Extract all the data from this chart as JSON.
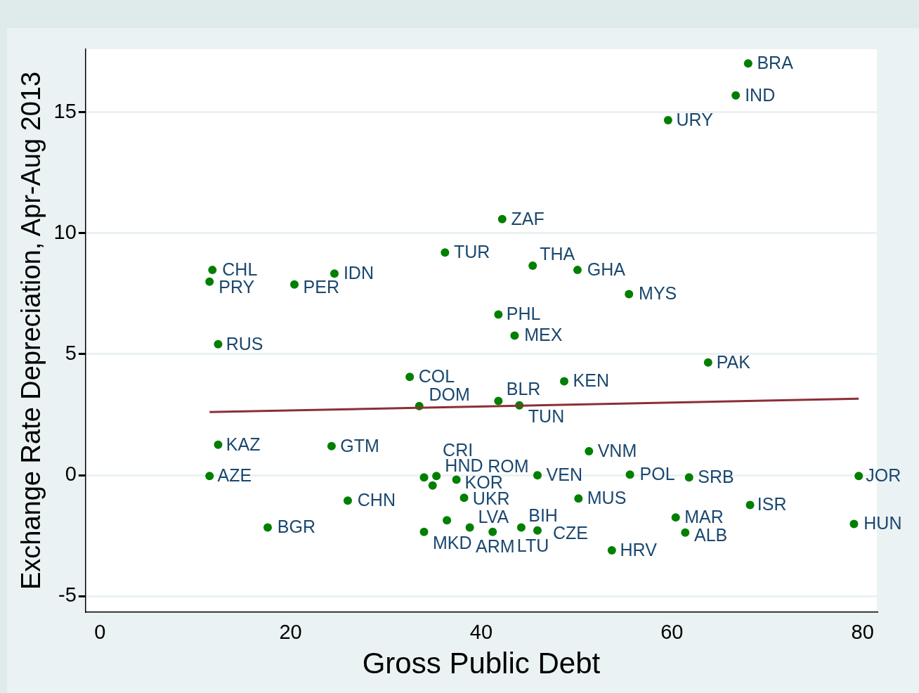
{
  "chart_data": {
    "type": "scatter",
    "xlabel": "Gross Public Debt",
    "ylabel": "Exchange Rate Depreciation, Apr-Aug 2013",
    "xlim": [
      -1.5,
      81.5
    ],
    "ylim": [
      -5.65,
      17.6
    ],
    "xticks": [
      0,
      20,
      40,
      60,
      80
    ],
    "yticks": [
      -5,
      0,
      5,
      10,
      15
    ],
    "grid": "y",
    "legend": false,
    "marker": "circle",
    "series": [
      {
        "type": "scatter",
        "color": "#007f00",
        "x": [
          68.0,
          66.7,
          59.6,
          42.2,
          36.2,
          45.4,
          50.1,
          11.8,
          11.5,
          24.6,
          20.4,
          55.5,
          41.8,
          43.5,
          12.4,
          63.8,
          32.5,
          48.7,
          41.8,
          44.0,
          33.5,
          12.4,
          24.3,
          51.3,
          11.5,
          34.0,
          35.3,
          34.9,
          37.4,
          45.9,
          55.6,
          61.8,
          79.6,
          26.0,
          38.2,
          50.2,
          68.2,
          36.4,
          60.4,
          79.1,
          17.6,
          38.8,
          44.2,
          34.0,
          41.2,
          45.9,
          61.4,
          53.7
        ],
        "values": [
          17.01,
          15.69,
          14.67,
          10.58,
          9.2,
          8.66,
          8.48,
          8.48,
          8.0,
          8.33,
          7.88,
          7.48,
          6.64,
          5.77,
          5.41,
          4.66,
          4.06,
          3.88,
          3.07,
          2.89,
          2.86,
          1.26,
          1.2,
          0.99,
          -0.03,
          -0.09,
          -0.03,
          -0.42,
          -0.18,
          0.0,
          0.03,
          -0.09,
          -0.03,
          -1.05,
          -0.93,
          -0.96,
          -1.23,
          -1.86,
          -1.74,
          -2.01,
          -2.16,
          -2.16,
          -2.16,
          -2.34,
          -2.34,
          -2.28,
          -2.37,
          -3.1
        ]
      },
      {
        "type": "line",
        "color": "#8b2f36",
        "marker": "none",
        "x": [
          11.5,
          79.6
        ],
        "values": [
          2.61,
          3.16
        ]
      }
    ],
    "annotations": [
      {
        "text": "BRA",
        "x": 68.0,
        "y": 17.01
      },
      {
        "text": "IND",
        "x": 66.7,
        "y": 15.69
      },
      {
        "text": "URY",
        "x": 59.6,
        "y": 14.67
      },
      {
        "text": "ZAF",
        "x": 42.2,
        "y": 10.58
      },
      {
        "text": "TUR",
        "x": 36.2,
        "y": 9.2
      },
      {
        "text": "THA",
        "x": 45.4,
        "y": 8.66
      },
      {
        "text": "GHA",
        "x": 50.1,
        "y": 8.48
      },
      {
        "text": "CHL",
        "x": 11.8,
        "y": 8.48
      },
      {
        "text": "PRY",
        "x": 11.5,
        "y": 8.0
      },
      {
        "text": "IDN",
        "x": 24.6,
        "y": 8.33
      },
      {
        "text": "PER",
        "x": 20.4,
        "y": 7.88
      },
      {
        "text": "MYS",
        "x": 55.5,
        "y": 7.48
      },
      {
        "text": "PHL",
        "x": 41.8,
        "y": 6.64
      },
      {
        "text": "MEX",
        "x": 43.5,
        "y": 5.77
      },
      {
        "text": "RUS",
        "x": 12.4,
        "y": 5.41
      },
      {
        "text": "PAK",
        "x": 63.8,
        "y": 4.66
      },
      {
        "text": "COL",
        "x": 32.5,
        "y": 4.06
      },
      {
        "text": "KEN",
        "x": 48.7,
        "y": 3.88
      },
      {
        "text": "BLR",
        "x": 41.8,
        "y": 3.07
      },
      {
        "text": "TUN",
        "x": 44.0,
        "y": 2.89
      },
      {
        "text": "DOM",
        "x": 33.5,
        "y": 2.86
      },
      {
        "text": "KAZ",
        "x": 12.4,
        "y": 1.26
      },
      {
        "text": "GTM",
        "x": 24.3,
        "y": 1.2
      },
      {
        "text": "VNM",
        "x": 51.3,
        "y": 0.99
      },
      {
        "text": "AZE",
        "x": 11.5,
        "y": -0.03
      },
      {
        "text": "HND",
        "x": 34.0,
        "y": -0.09
      },
      {
        "text": "CRI",
        "x": 35.3,
        "y": -0.03
      },
      {
        "text": "KOR",
        "x": 34.9,
        "y": -0.42
      },
      {
        "text": "UKR",
        "x": 37.4,
        "y": -0.18
      },
      {
        "text": "VEN",
        "x": 45.9,
        "y": 0.0
      },
      {
        "text": "POL",
        "x": 55.6,
        "y": 0.03
      },
      {
        "text": "SRB",
        "x": 61.8,
        "y": -0.09
      },
      {
        "text": "JOR",
        "x": 79.6,
        "y": -0.03
      },
      {
        "text": "CHN",
        "x": 26.0,
        "y": -1.05
      },
      {
        "text": "ROM",
        "x": 38.2,
        "y": -0.93
      },
      {
        "text": "MUS",
        "x": 50.2,
        "y": -0.96
      },
      {
        "text": "ISR",
        "x": 68.2,
        "y": -1.23
      },
      {
        "text": "LVA",
        "x": 36.4,
        "y": -1.86
      },
      {
        "text": "MAR",
        "x": 60.4,
        "y": -1.74
      },
      {
        "text": "HUN",
        "x": 79.1,
        "y": -2.01
      },
      {
        "text": "BGR",
        "x": 17.6,
        "y": -2.16
      },
      {
        "text": "ARM",
        "x": 38.8,
        "y": -2.16
      },
      {
        "text": "BIH",
        "x": 44.2,
        "y": -2.16
      },
      {
        "text": "MKD",
        "x": 34.0,
        "y": -2.34
      },
      {
        "text": "LTU",
        "x": 41.2,
        "y": -2.34
      },
      {
        "text": "CZE",
        "x": 45.9,
        "y": -2.28
      },
      {
        "text": "ALB",
        "x": 61.4,
        "y": -2.37
      },
      {
        "text": "HRV",
        "x": 53.7,
        "y": -3.1
      }
    ]
  }
}
